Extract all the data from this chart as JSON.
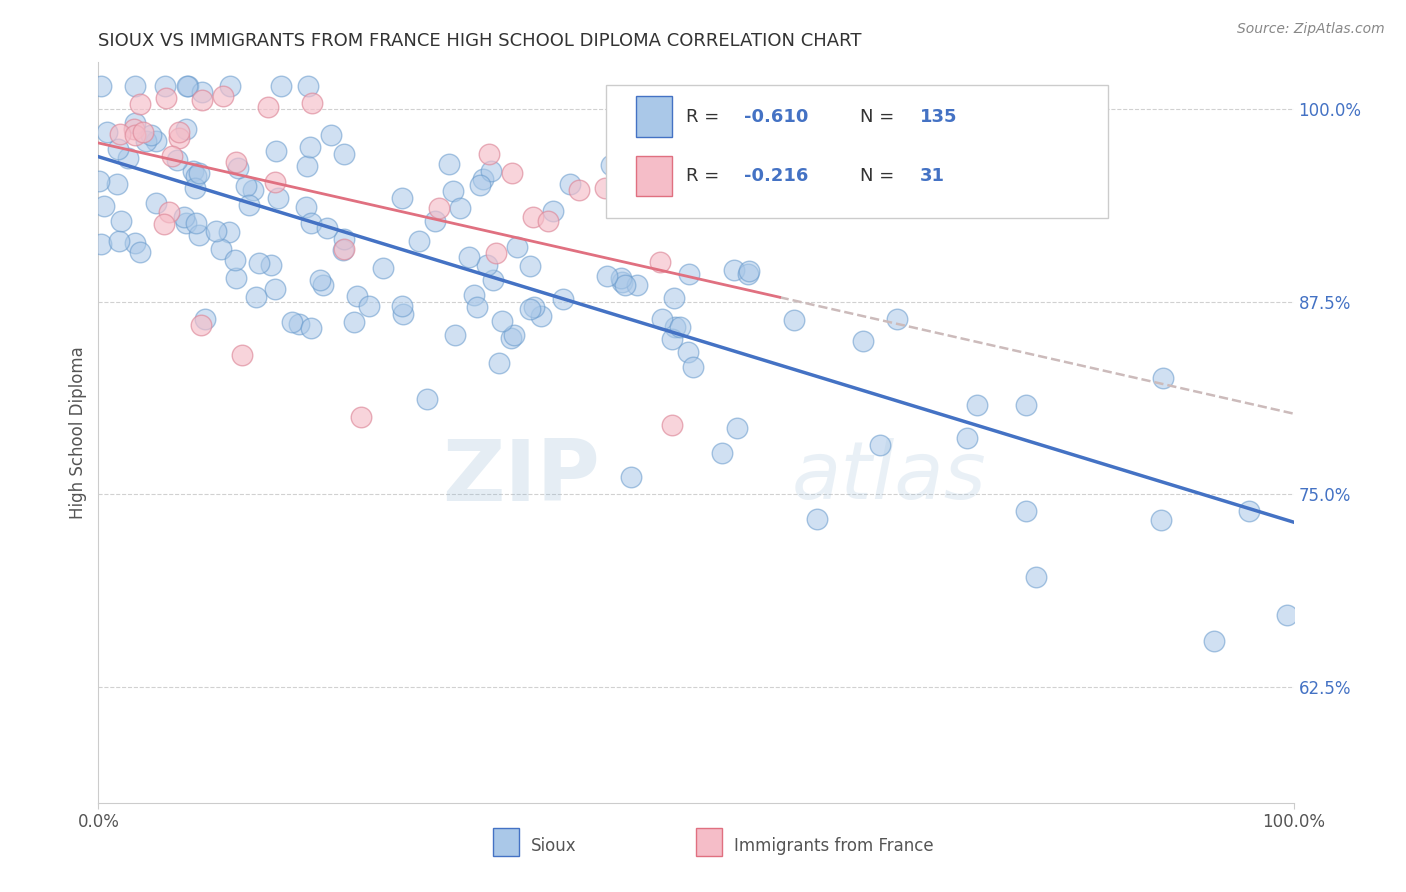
{
  "title": "SIOUX VS IMMIGRANTS FROM FRANCE HIGH SCHOOL DIPLOMA CORRELATION CHART",
  "source": "Source: ZipAtlas.com",
  "ylabel": "High School Diploma",
  "xlim": [
    0.0,
    1.0
  ],
  "ylim": [
    0.55,
    1.03
  ],
  "yticks": [
    0.625,
    0.75,
    0.875,
    1.0
  ],
  "ytick_labels": [
    "62.5%",
    "75.0%",
    "87.5%",
    "100.0%"
  ],
  "r_sioux": -0.61,
  "n_sioux": 135,
  "r_france": -0.216,
  "n_france": 31,
  "sioux_color": "#aac8e8",
  "sioux_edge_color": "#6699cc",
  "sioux_line_color": "#4472c4",
  "france_color": "#f5bdc8",
  "france_edge_color": "#dd8899",
  "france_line_color": "#e07080",
  "france_dash_color": "#ccbbbb",
  "background_color": "#ffffff",
  "grid_color": "#cccccc",
  "watermark_zip": "ZIP",
  "watermark_atlas": "atlas",
  "legend_blue_label": "Sioux",
  "legend_pink_label": "Immigrants from France",
  "sioux_seed": 12345,
  "france_seed": 99
}
